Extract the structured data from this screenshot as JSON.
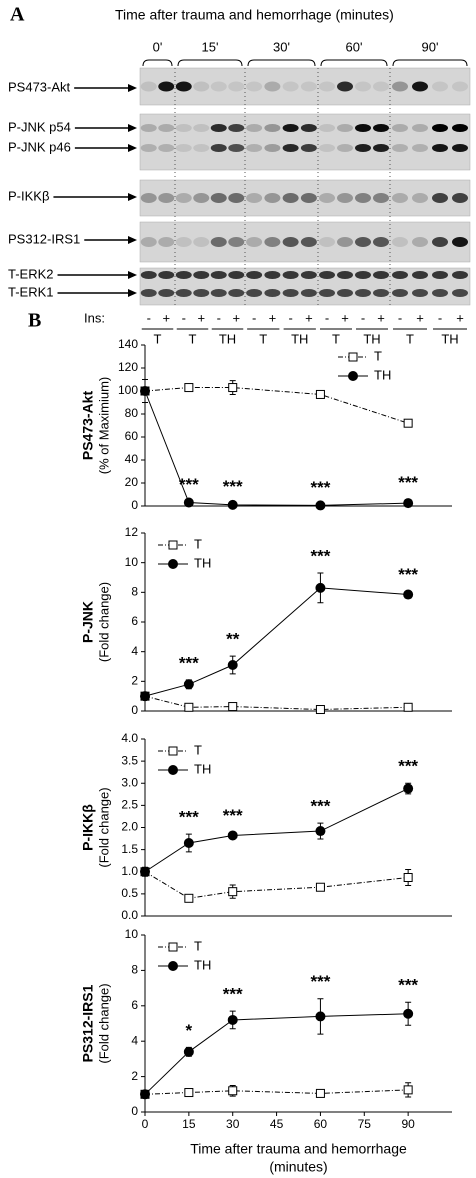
{
  "panel_a": {
    "label": "A",
    "title": "Time after trauma and hemorrhage (minutes)",
    "times": [
      "0'",
      "15'",
      "30'",
      "60'",
      "90'"
    ],
    "rows": [
      {
        "labels": [
          "PS473-Akt"
        ]
      },
      {
        "labels": [
          "P-JNK p54",
          "P-JNK p46"
        ]
      },
      {
        "labels": [
          "P-IKKβ"
        ]
      },
      {
        "labels": [
          "PS312-IRS1"
        ]
      },
      {
        "labels": [
          "T-ERK2",
          "T-ERK1"
        ]
      }
    ],
    "ins_label": "Ins:",
    "ins": [
      "-",
      "+",
      "-",
      "+",
      "-",
      "+",
      "-",
      "+",
      "-",
      "+",
      "-",
      "+",
      "-",
      "+",
      "-",
      "+",
      "-",
      "+"
    ],
    "groups": [
      "T",
      "T",
      "TH",
      "T",
      "TH",
      "T",
      "TH",
      "T",
      "TH"
    ]
  },
  "panel_b": {
    "label": "B"
  },
  "chart_data": [
    {
      "type": "line",
      "ylabel": [
        "PS473-Akt",
        "(% of Maximium)"
      ],
      "x": [
        0,
        15,
        30,
        60,
        90
      ],
      "xlim": [
        0,
        105
      ],
      "ylim": [
        0,
        140
      ],
      "yticks": [
        0,
        20,
        40,
        60,
        80,
        100,
        120,
        140
      ],
      "legend": "upper right",
      "series": [
        {
          "name": "T",
          "color": "#000000",
          "marker": "square-open",
          "line": "dashdot",
          "values": [
            100,
            103,
            103,
            97,
            72
          ],
          "errors": [
            3,
            2,
            6,
            2,
            2
          ]
        },
        {
          "name": "TH",
          "color": "#000000",
          "marker": "circle-filled",
          "line": "solid",
          "values": [
            100,
            3,
            1,
            0.5,
            2.5
          ],
          "errors": [
            10,
            1,
            1,
            1,
            3
          ],
          "significance": [
            null,
            "***",
            "***",
            "***",
            "***"
          ]
        }
      ]
    },
    {
      "type": "line",
      "ylabel": [
        "P-JNK",
        "(Fold change)"
      ],
      "x": [
        0,
        15,
        30,
        60,
        90
      ],
      "xlim": [
        0,
        105
      ],
      "ylim": [
        0,
        12
      ],
      "yticks": [
        0,
        2,
        4,
        6,
        8,
        10,
        12
      ],
      "legend": "upper left",
      "series": [
        {
          "name": "T",
          "color": "#000000",
          "marker": "square-open",
          "line": "dashdot",
          "values": [
            1,
            0.25,
            0.3,
            0.1,
            0.25
          ],
          "errors": [
            0.1,
            0.1,
            0.15,
            0.1,
            0.1
          ]
        },
        {
          "name": "TH",
          "color": "#000000",
          "marker": "circle-filled",
          "line": "solid",
          "values": [
            1,
            1.8,
            3.1,
            8.3,
            7.85
          ],
          "errors": [
            0.1,
            0.3,
            0.6,
            1,
            0.2
          ],
          "significance": [
            null,
            "***",
            "**",
            "***",
            "***"
          ]
        }
      ]
    },
    {
      "type": "line",
      "ylabel": [
        "P-IKKβ",
        "(Fold change)"
      ],
      "x": [
        0,
        15,
        30,
        60,
        90
      ],
      "xlim": [
        0,
        105
      ],
      "ylim": [
        0,
        4
      ],
      "yticks": [
        {
          "value": 0,
          "label": "0.0"
        },
        0.5,
        {
          "value": 1,
          "label": "1.0"
        },
        1.5,
        {
          "value": 2,
          "label": "2.0"
        },
        2.5,
        {
          "value": 3,
          "label": "3.0"
        },
        3.5,
        {
          "value": 4,
          "label": "4.0"
        }
      ],
      "legend": "upper left",
      "series": [
        {
          "name": "T",
          "color": "#000000",
          "marker": "square-open",
          "line": "dashdot",
          "values": [
            1,
            0.4,
            0.55,
            0.65,
            0.87
          ],
          "errors": [
            0.1,
            0.05,
            0.15,
            0.05,
            0.18
          ]
        },
        {
          "name": "TH",
          "color": "#000000",
          "marker": "circle-filled",
          "line": "solid",
          "values": [
            1,
            1.65,
            1.82,
            1.92,
            2.88
          ],
          "errors": [
            0.1,
            0.2,
            0.07,
            0.18,
            0.12
          ],
          "significance": [
            null,
            "***",
            "***",
            "***",
            "***"
          ]
        }
      ]
    },
    {
      "type": "line",
      "ylabel": [
        "PS312-IRS1",
        "(Fold change)"
      ],
      "xlabel": [
        "Time after trauma and hemorrhage",
        "(minutes)"
      ],
      "x": [
        0,
        15,
        30,
        60,
        90
      ],
      "xlim": [
        0,
        105
      ],
      "xticks": [
        0,
        15,
        30,
        45,
        60,
        75,
        90
      ],
      "ylim": [
        0,
        10
      ],
      "yticks": [
        0,
        2,
        4,
        6,
        8,
        10
      ],
      "legend": "upper left",
      "series": [
        {
          "name": "T",
          "color": "#000000",
          "marker": "square-open",
          "line": "dashdot",
          "values": [
            1,
            1.1,
            1.2,
            1.05,
            1.25
          ],
          "errors": [
            0.05,
            0.15,
            0.3,
            0.1,
            0.4
          ]
        },
        {
          "name": "TH",
          "color": "#000000",
          "marker": "circle-filled",
          "line": "solid",
          "values": [
            1,
            3.4,
            5.2,
            5.4,
            5.55
          ],
          "errors": [
            0.05,
            0.25,
            0.5,
            1.0,
            0.65
          ],
          "significance": [
            null,
            "*",
            "***",
            "***",
            "***"
          ]
        }
      ]
    }
  ]
}
